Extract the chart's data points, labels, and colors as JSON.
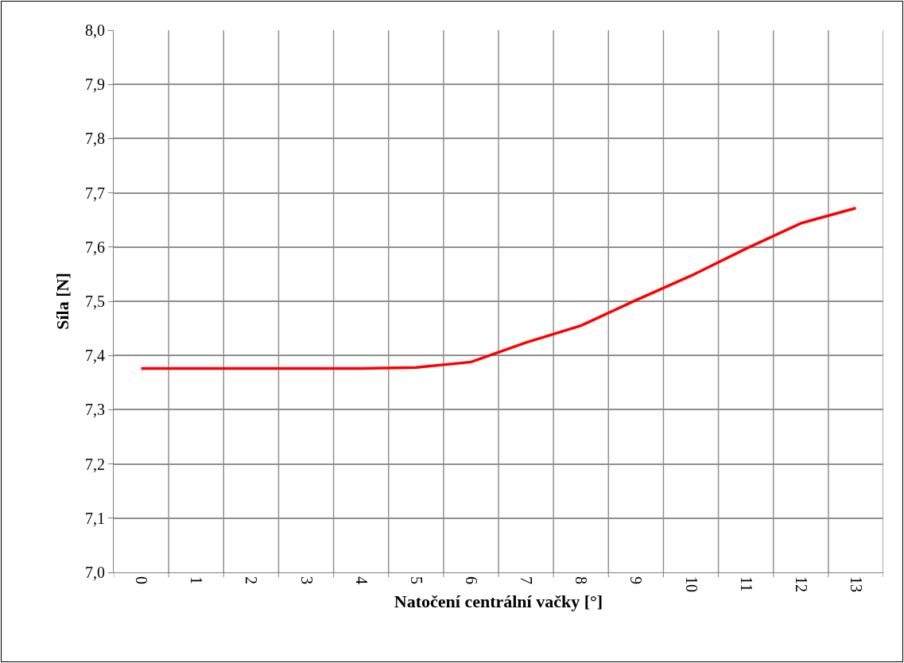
{
  "chart_data": {
    "type": "line",
    "xlabel": "Natočení centrální vačky [°]",
    "ylabel": "Síla [N]",
    "categories": [
      "0",
      "1",
      "2",
      "3",
      "4",
      "5",
      "6",
      "7",
      "8",
      "9",
      "10",
      "11",
      "12",
      "13"
    ],
    "series": [
      {
        "color": "#ff0000",
        "values": [
          7.376,
          7.376,
          7.376,
          7.376,
          7.376,
          7.378,
          7.388,
          7.424,
          7.455,
          7.502,
          7.547,
          7.597,
          7.644,
          7.672
        ]
      }
    ],
    "ylim": [
      7.0,
      8.0
    ],
    "yticks": [
      {
        "value": 7.0,
        "label": "7,0"
      },
      {
        "value": 7.1,
        "label": "7,1"
      },
      {
        "value": 7.2,
        "label": "7,2"
      },
      {
        "value": 7.3,
        "label": "7,3"
      },
      {
        "value": 7.4,
        "label": "7,4"
      },
      {
        "value": 7.5,
        "label": "7,5"
      },
      {
        "value": 7.6,
        "label": "7,6"
      },
      {
        "value": 7.7,
        "label": "7,7"
      },
      {
        "value": 7.8,
        "label": "7,8"
      },
      {
        "value": 7.9,
        "label": "7,9"
      },
      {
        "value": 8.0,
        "label": "8,0"
      }
    ],
    "grid": true,
    "marker": "none",
    "line_style": "solid"
  }
}
